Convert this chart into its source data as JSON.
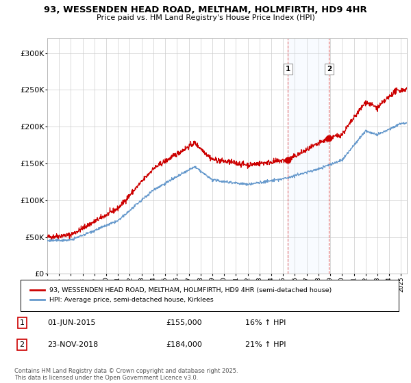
{
  "title": "93, WESSENDEN HEAD ROAD, MELTHAM, HOLMFIRTH, HD9 4HR",
  "subtitle": "Price paid vs. HM Land Registry's House Price Index (HPI)",
  "xlim_start": 1995.0,
  "xlim_end": 2025.5,
  "ylim": [
    0,
    320000
  ],
  "yticks": [
    0,
    50000,
    100000,
    150000,
    200000,
    250000,
    300000
  ],
  "ytick_labels": [
    "£0",
    "£50K",
    "£100K",
    "£150K",
    "£200K",
    "£250K",
    "£300K"
  ],
  "sale1_date": 2015.42,
  "sale1_price": 155000,
  "sale2_date": 2018.9,
  "sale2_price": 184000,
  "red_color": "#cc0000",
  "blue_color": "#6699cc",
  "shade_color": "#ddeeff",
  "legend_line1": "93, WESSENDEN HEAD ROAD, MELTHAM, HOLMFIRTH, HD9 4HR (semi-detached house)",
  "legend_line2": "HPI: Average price, semi-detached house, Kirklees",
  "footnote": "Contains HM Land Registry data © Crown copyright and database right 2025.\nThis data is licensed under the Open Government Licence v3.0.",
  "background_color": "#ffffff",
  "grid_color": "#cccccc"
}
